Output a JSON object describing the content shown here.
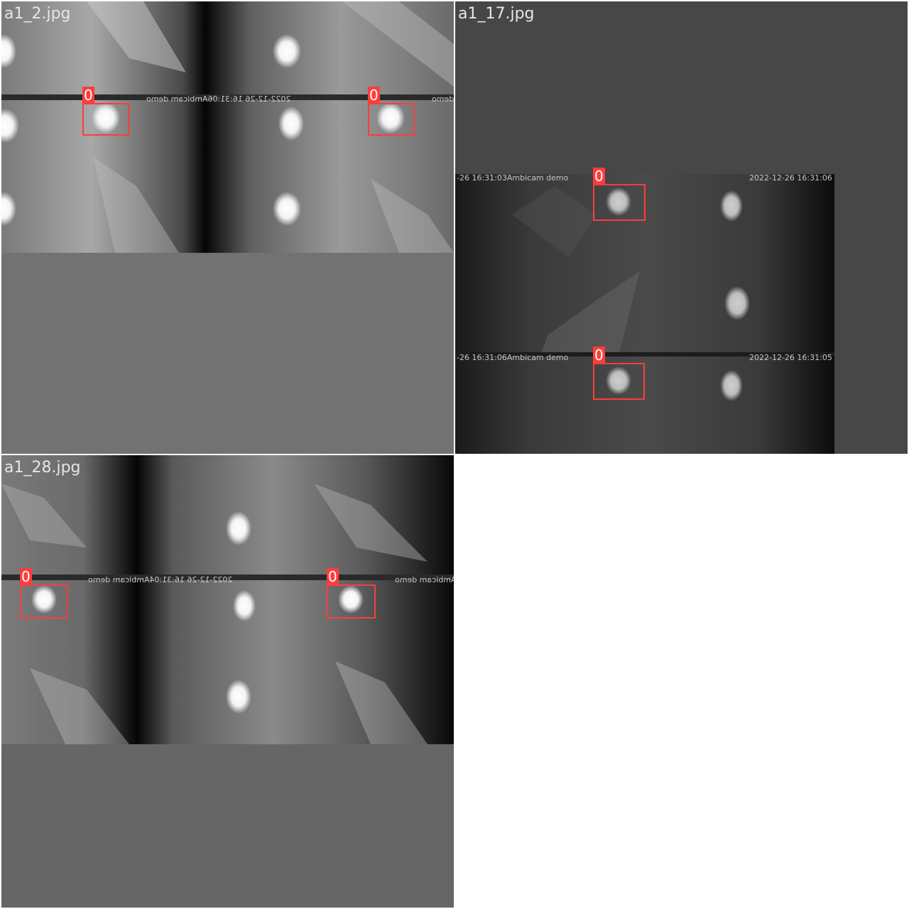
{
  "panels": [
    {
      "filename": "a1_2.jpg",
      "captions": [
        "2022-12-26 16:31:06Ambicam demo",
        "demo"
      ],
      "detections": [
        {
          "label": "0"
        },
        {
          "label": "0"
        }
      ]
    },
    {
      "filename": "a1_17.jpg",
      "captions": [
        "-26 16:31:03Ambicam demo",
        "2022-12-26 16:31:06",
        "-26 16:31:06Ambicam demo",
        "2022-12-26 16:31:05"
      ],
      "detections": [
        {
          "label": "0"
        },
        {
          "label": "0"
        }
      ]
    },
    {
      "filename": "a1_28.jpg",
      "captions": [
        "2022-12-26 16:31:04Ambicam demo",
        "Ambicam demo"
      ],
      "detections": [
        {
          "label": "0"
        },
        {
          "label": "0"
        }
      ]
    }
  ],
  "colors": {
    "box": "#ff3c3c",
    "panel1_pad": "#727272",
    "panel2_pad": "#474747",
    "panel3_pad": "#666666"
  }
}
